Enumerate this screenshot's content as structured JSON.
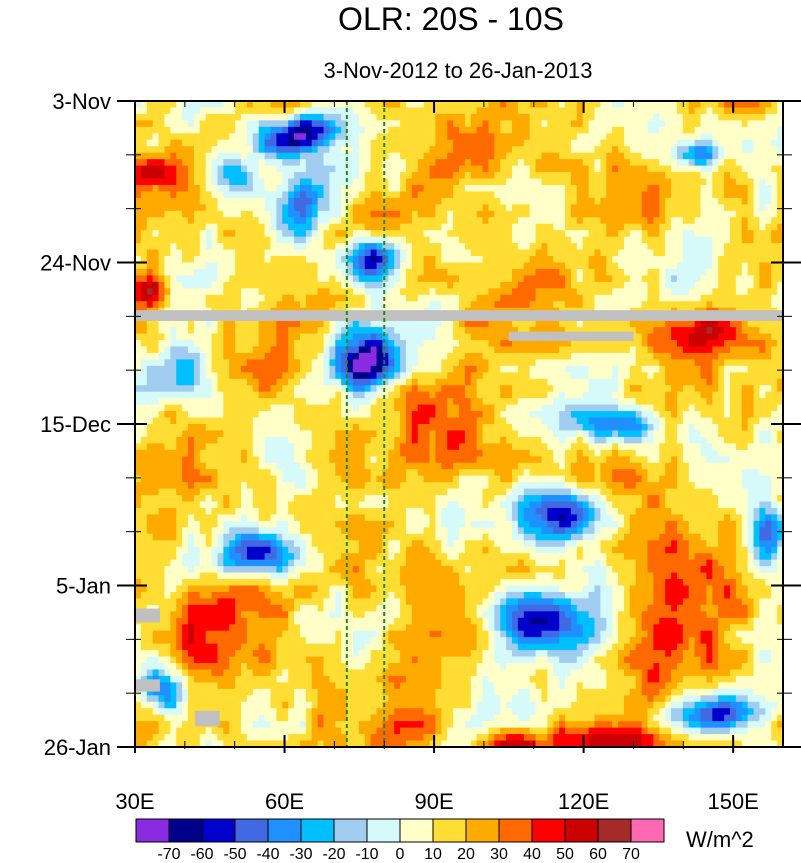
{
  "chart_data": {
    "type": "heatmap",
    "title": "OLR: 20S - 10S",
    "subtitle": "3-Nov-2012 to 26-Jan-2013",
    "xlabel": "",
    "ylabel": "",
    "x_range": [
      30,
      160
    ],
    "x_unit": "degrees east longitude",
    "x_ticks": [
      {
        "value": 30,
        "label": "30E"
      },
      {
        "value": 60,
        "label": "60E"
      },
      {
        "value": 90,
        "label": "90E"
      },
      {
        "value": 120,
        "label": "120E"
      },
      {
        "value": 150,
        "label": "150E"
      }
    ],
    "y_range_days": [
      0,
      84
    ],
    "y_ticks": [
      {
        "day": 0,
        "label": "3-Nov"
      },
      {
        "day": 21,
        "label": "24-Nov"
      },
      {
        "day": 42,
        "label": "15-Dec"
      },
      {
        "day": 63,
        "label": "5-Jan"
      },
      {
        "day": 84,
        "label": "26-Jan"
      }
    ],
    "reference_lines_lon": [
      72.5,
      80
    ],
    "colorbar": {
      "units": "W/m^2",
      "levels": [
        -70,
        -60,
        -50,
        -40,
        -30,
        -20,
        -10,
        0,
        10,
        20,
        30,
        40,
        50,
        60,
        70
      ],
      "colors": [
        "#8a2be2",
        "#00008b",
        "#0000cd",
        "#4169e1",
        "#1e90ff",
        "#00bfff",
        "#a0ccf0",
        "#d6fafa",
        "#ffffc8",
        "#ffdd33",
        "#ffaa00",
        "#ff6a00",
        "#ff0000",
        "#cc0000",
        "#a52a2a",
        "#ff69b4"
      ]
    },
    "missing_color": "#c0c0c0",
    "missing_data": [
      {
        "lon": [
          30,
          160
        ],
        "day": [
          27.2,
          28.6
        ]
      },
      {
        "lon": [
          105,
          130
        ],
        "day": [
          30.0,
          31.2
        ]
      },
      {
        "lon": [
          30,
          35
        ],
        "day": [
          66.0,
          67.8
        ]
      },
      {
        "lon": [
          30,
          35
        ],
        "day": [
          75.2,
          76.8
        ]
      },
      {
        "lon": [
          42,
          47
        ],
        "day": [
          79.3,
          81.3
        ]
      }
    ],
    "features": [
      {
        "lon": 63,
        "day": 4.5,
        "v": -72,
        "rl": 8,
        "rd": 2.6,
        "tilt": -0.9
      },
      {
        "lon": 50,
        "day": 10,
        "v": -38,
        "rl": 6,
        "rd": 3,
        "tilt": 0
      },
      {
        "lon": 63,
        "day": 14,
        "v": -42,
        "rl": 6,
        "rd": 3.5,
        "tilt": 0
      },
      {
        "lon": 77,
        "day": 20.5,
        "v": -65,
        "rl": 5,
        "rd": 3,
        "tilt": 0
      },
      {
        "lon": 76,
        "day": 34,
        "v": -75,
        "rl": 6,
        "rd": 4,
        "tilt": 0
      },
      {
        "lon": 40,
        "day": 35,
        "v": -35,
        "rl": 5,
        "rd": 3,
        "tilt": 0
      },
      {
        "lon": 56,
        "day": 59,
        "v": -65,
        "rl": 9,
        "rd": 3.2,
        "tilt": 0
      },
      {
        "lon": 116,
        "day": 54,
        "v": -72,
        "rl": 8,
        "rd": 3.5,
        "tilt": 0
      },
      {
        "lon": 112,
        "day": 67.5,
        "v": -75,
        "rl": 10,
        "rd": 4,
        "tilt": 0
      },
      {
        "lon": 147,
        "day": 79.5,
        "v": -62,
        "rl": 10,
        "rd": 2.6,
        "tilt": 0
      },
      {
        "lon": 157,
        "day": 57,
        "v": -55,
        "rl": 4,
        "rd": 4,
        "tilt": 0
      },
      {
        "lon": 143,
        "day": 7,
        "v": -48,
        "rl": 5,
        "rd": 2,
        "tilt": 0
      },
      {
        "lon": 127,
        "day": 42,
        "v": -50,
        "rl": 8,
        "rd": 2.5,
        "tilt": 0
      },
      {
        "lon": 36,
        "day": 76.5,
        "v": -48,
        "rl": 5,
        "rd": 3,
        "tilt": 0
      },
      {
        "lon": 47,
        "day": 66,
        "v": 40,
        "rl": 12,
        "rd": 7,
        "tilt": 0
      },
      {
        "lon": 33,
        "day": 24.5,
        "v": 48,
        "rl": 4,
        "rd": 2,
        "tilt": 0
      },
      {
        "lon": 33,
        "day": 9.5,
        "v": 45,
        "rl": 4,
        "rd": 2,
        "tilt": 0
      },
      {
        "lon": 142,
        "day": 29.5,
        "v": 48,
        "rl": 10,
        "rd": 2.5,
        "tilt": 0
      },
      {
        "lon": 138,
        "day": 64,
        "v": 38,
        "rl": 12,
        "rd": 10,
        "tilt": 0
      },
      {
        "lon": 125,
        "day": 83,
        "v": 50,
        "rl": 12,
        "rd": 2,
        "tilt": 0
      },
      {
        "lon": 105,
        "day": 84,
        "v": 42,
        "rl": 8,
        "rd": 2,
        "tilt": 0
      },
      {
        "lon": 92,
        "day": 45,
        "v": 20,
        "rl": 8,
        "rd": 14,
        "tilt": 0
      },
      {
        "lon": 100,
        "day": 10,
        "v": 22,
        "rl": 14,
        "rd": 8,
        "tilt": 0
      },
      {
        "lon": 86,
        "day": 72,
        "v": 20,
        "rl": 10,
        "rd": 10,
        "tilt": 0
      }
    ]
  }
}
